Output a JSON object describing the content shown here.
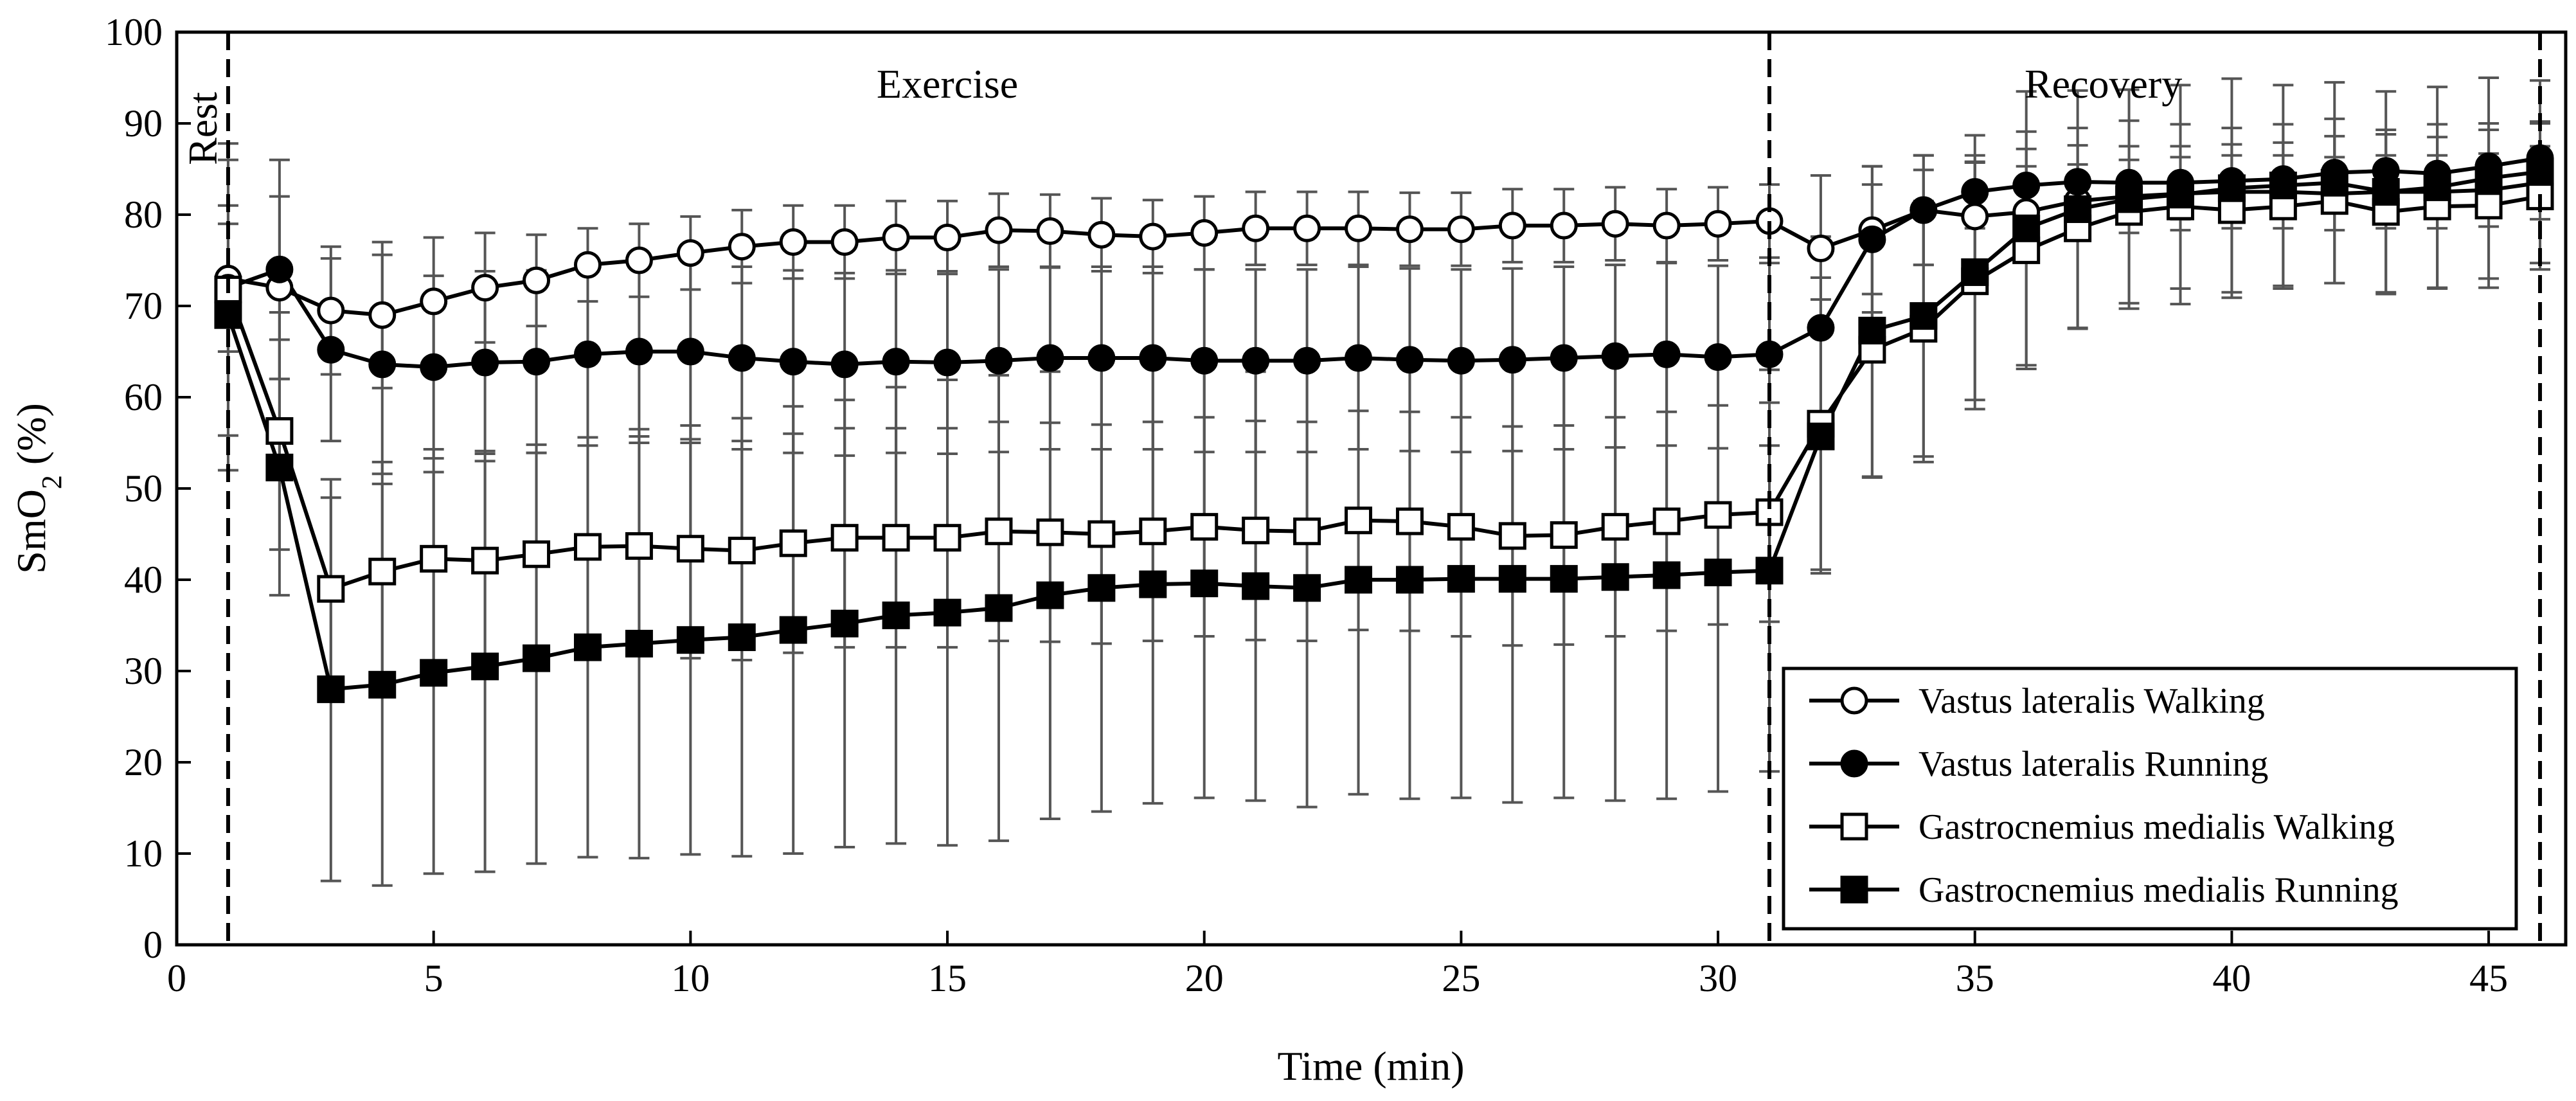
{
  "chart_data": {
    "type": "line",
    "title": "",
    "xlabel": "Time (min)",
    "ylabel_main": "SmO",
    "ylabel_sub": "2",
    "ylabel_suffix": " (%)",
    "xlim": [
      0,
      46.5
    ],
    "ylim": [
      0,
      100
    ],
    "xticks": [
      0,
      5,
      10,
      15,
      20,
      25,
      30,
      35,
      40,
      45
    ],
    "yticks": [
      0,
      10,
      20,
      30,
      40,
      50,
      60,
      70,
      80,
      90,
      100
    ],
    "grid": false,
    "legend_position": "bottom-right",
    "x": [
      1,
      2,
      3,
      4,
      5,
      6,
      7,
      8,
      9,
      10,
      11,
      12,
      13,
      14,
      15,
      16,
      17,
      18,
      19,
      20,
      21,
      22,
      23,
      24,
      25,
      26,
      27,
      28,
      29,
      30,
      31,
      32,
      33,
      34,
      35,
      36,
      37,
      38,
      39,
      40,
      41,
      42,
      43,
      44,
      45,
      46
    ],
    "phase_lines": [
      1,
      31,
      46
    ],
    "regions": [
      {
        "label": "Rest",
        "x": 0.5,
        "vertical": true
      },
      {
        "label": "Exercise",
        "x": 15
      },
      {
        "label": "Recovery",
        "x": 37.5
      }
    ],
    "series": [
      {
        "name": "Vastus lateralis Walking",
        "marker": "circle",
        "filled": false,
        "values": [
          73,
          72,
          69.5,
          69,
          70.5,
          72,
          72.8,
          74.5,
          75,
          75.8,
          76.5,
          77,
          77,
          77.5,
          77.5,
          78.3,
          78.2,
          77.8,
          77.6,
          78,
          78.5,
          78.5,
          78.5,
          78.4,
          78.4,
          78.8,
          78.8,
          79,
          78.8,
          79,
          79.3,
          76.3,
          78.3,
          80.5,
          79.8,
          80.3,
          81.5,
          82,
          82.3,
          82.5,
          82.5,
          82.3,
          82.5,
          82.5,
          82.7,
          83.5
        ],
        "errors": [
          8,
          10,
          7,
          8,
          7,
          6,
          5,
          4,
          4,
          4,
          4,
          4,
          4,
          4,
          4,
          4,
          4,
          4,
          4,
          4,
          4,
          4,
          4,
          4,
          4,
          4,
          4,
          4,
          4,
          4,
          4,
          8,
          7,
          6,
          6,
          5,
          4,
          4,
          4,
          4,
          4,
          4,
          4,
          4,
          4,
          4
        ]
      },
      {
        "name": "Vastus lateralis Running",
        "marker": "circle",
        "filled": true,
        "values": [
          72,
          74,
          65.2,
          63.6,
          63.3,
          63.8,
          63.9,
          64.7,
          65,
          65,
          64.3,
          63.9,
          63.6,
          63.9,
          63.8,
          64,
          64.3,
          64.3,
          64.3,
          64,
          64,
          64,
          64.3,
          64.1,
          64,
          64.1,
          64.3,
          64.5,
          64.7,
          64.4,
          64.7,
          67.6,
          77.3,
          80.5,
          82.5,
          83.2,
          83.6,
          83.5,
          83.5,
          83.7,
          83.9,
          84.6,
          84.8,
          84.5,
          85.3,
          86.2
        ],
        "errors": [
          7,
          12,
          10,
          12,
          10,
          10,
          10,
          10,
          10,
          10,
          10,
          10,
          10,
          10,
          10,
          10,
          10,
          10,
          10,
          10,
          10,
          10,
          10,
          10,
          10,
          10,
          10,
          10,
          10,
          10,
          10,
          10,
          8,
          6,
          4,
          4,
          4,
          4,
          4,
          4,
          4,
          4,
          4,
          4,
          4,
          4
        ]
      },
      {
        "name": "Gastrocnemius medialis Walking",
        "marker": "square",
        "filled": false,
        "values": [
          71.8,
          56.3,
          39,
          40.9,
          42.3,
          42.1,
          42.8,
          43.6,
          43.7,
          43.4,
          43.2,
          44,
          44.6,
          44.6,
          44.6,
          45.3,
          45.2,
          45,
          45.3,
          45.8,
          45.4,
          45.3,
          46.5,
          46.4,
          45.8,
          44.8,
          44.9,
          45.8,
          46.4,
          47.1,
          47.4,
          57.1,
          65.2,
          67.5,
          72.7,
          76.1,
          78.5,
          80.3,
          80.9,
          80.5,
          80.9,
          81.5,
          80.3,
          80.9,
          81,
          82
        ],
        "errors": [
          16,
          13,
          12,
          12,
          12,
          12,
          12,
          12,
          12,
          12,
          12,
          12,
          12,
          12,
          12,
          12,
          12,
          12,
          12,
          12,
          12,
          12,
          12,
          12,
          12,
          12,
          12,
          12,
          12,
          12,
          12,
          16,
          14,
          14,
          13,
          13,
          11,
          10,
          9,
          9,
          9,
          9,
          9,
          9,
          9,
          8
        ]
      },
      {
        "name": "Gastrocnemius medialis Running",
        "marker": "square",
        "filled": true,
        "values": [
          69,
          52.3,
          28,
          28.5,
          29.8,
          30.5,
          31.4,
          32.6,
          33,
          33.4,
          33.7,
          34.5,
          35.2,
          36.1,
          36.4,
          36.9,
          38.3,
          39.1,
          39.5,
          39.6,
          39.3,
          39.1,
          40,
          40,
          40.1,
          40.1,
          40.1,
          40.3,
          40.5,
          40.8,
          41,
          55.7,
          67.3,
          68.9,
          73.7,
          78.5,
          80.6,
          81.7,
          82.2,
          82.9,
          83.2,
          83.5,
          82.5,
          83,
          84,
          84.7
        ],
        "errors": [
          17,
          14,
          21,
          22,
          22,
          22.5,
          22.5,
          23,
          23.5,
          23.5,
          24,
          24.5,
          24.5,
          25,
          25.5,
          25.5,
          24.5,
          24.5,
          24,
          23.5,
          23.5,
          24,
          23.5,
          24,
          24,
          24.5,
          24,
          24.5,
          24.5,
          24,
          22,
          15,
          16,
          16,
          15,
          15,
          13,
          12,
          12,
          12,
          11,
          11,
          11,
          11,
          11,
          10
        ]
      }
    ]
  }
}
